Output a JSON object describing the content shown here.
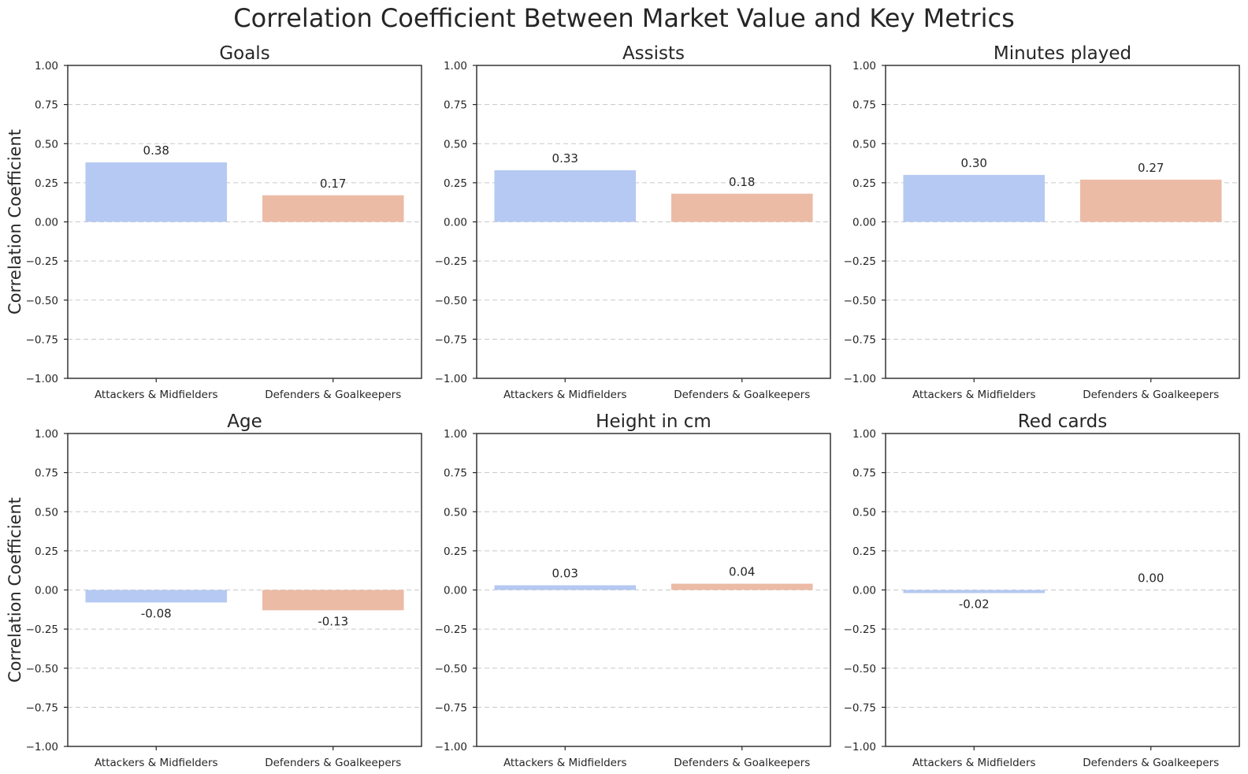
{
  "suptitle": "Correlation Coefficient Between Market Value and Key Metrics",
  "colors": {
    "attackers": "#b5c9f2",
    "defenders": "#ecbba6",
    "grid": "#c8c8c8",
    "frame": "#262626"
  },
  "chart_data": [
    {
      "type": "bar",
      "title": "Goals",
      "ylabel": "Correlation Coefficient",
      "categories": [
        "Attackers & Midfielders",
        "Defenders & Goalkeepers"
      ],
      "values": [
        0.38,
        0.17
      ],
      "labels": [
        "0.38",
        "0.17"
      ],
      "ylim": [
        -1,
        1
      ],
      "yticks": [
        "−1.00",
        "−0.75",
        "−0.50",
        "−0.25",
        "0.00",
        "0.25",
        "0.50",
        "0.75",
        "1.00"
      ],
      "grid": true
    },
    {
      "type": "bar",
      "title": "Assists",
      "ylabel": "",
      "categories": [
        "Attackers & Midfielders",
        "Defenders & Goalkeepers"
      ],
      "values": [
        0.33,
        0.18
      ],
      "labels": [
        "0.33",
        "0.18"
      ],
      "ylim": [
        -1,
        1
      ],
      "yticks": [
        "−1.00",
        "−0.75",
        "−0.50",
        "−0.25",
        "0.00",
        "0.25",
        "0.50",
        "0.75",
        "1.00"
      ],
      "grid": true
    },
    {
      "type": "bar",
      "title": "Minutes played",
      "ylabel": "",
      "categories": [
        "Attackers & Midfielders",
        "Defenders & Goalkeepers"
      ],
      "values": [
        0.3,
        0.27
      ],
      "labels": [
        "0.30",
        "0.27"
      ],
      "ylim": [
        -1,
        1
      ],
      "yticks": [
        "−1.00",
        "−0.75",
        "−0.50",
        "−0.25",
        "0.00",
        "0.25",
        "0.50",
        "0.75",
        "1.00"
      ],
      "grid": true
    },
    {
      "type": "bar",
      "title": "Age",
      "ylabel": "Correlation Coefficient",
      "categories": [
        "Attackers & Midfielders",
        "Defenders & Goalkeepers"
      ],
      "values": [
        -0.08,
        -0.13
      ],
      "labels": [
        "-0.08",
        "-0.13"
      ],
      "ylim": [
        -1,
        1
      ],
      "yticks": [
        "−1.00",
        "−0.75",
        "−0.50",
        "−0.25",
        "0.00",
        "0.25",
        "0.50",
        "0.75",
        "1.00"
      ],
      "grid": true
    },
    {
      "type": "bar",
      "title": "Height in cm",
      "ylabel": "",
      "categories": [
        "Attackers & Midfielders",
        "Defenders & Goalkeepers"
      ],
      "values": [
        0.03,
        0.04
      ],
      "labels": [
        "0.03",
        "0.04"
      ],
      "ylim": [
        -1,
        1
      ],
      "yticks": [
        "−1.00",
        "−0.75",
        "−0.50",
        "−0.25",
        "0.00",
        "0.25",
        "0.50",
        "0.75",
        "1.00"
      ],
      "grid": true
    },
    {
      "type": "bar",
      "title": "Red cards",
      "ylabel": "",
      "categories": [
        "Attackers & Midfielders",
        "Defenders & Goalkeepers"
      ],
      "values": [
        -0.02,
        0.0
      ],
      "labels": [
        "-0.02",
        "0.00"
      ],
      "ylim": [
        -1,
        1
      ],
      "yticks": [
        "−1.00",
        "−0.75",
        "−0.50",
        "−0.25",
        "0.00",
        "0.25",
        "0.50",
        "0.75",
        "1.00"
      ],
      "grid": true
    }
  ]
}
